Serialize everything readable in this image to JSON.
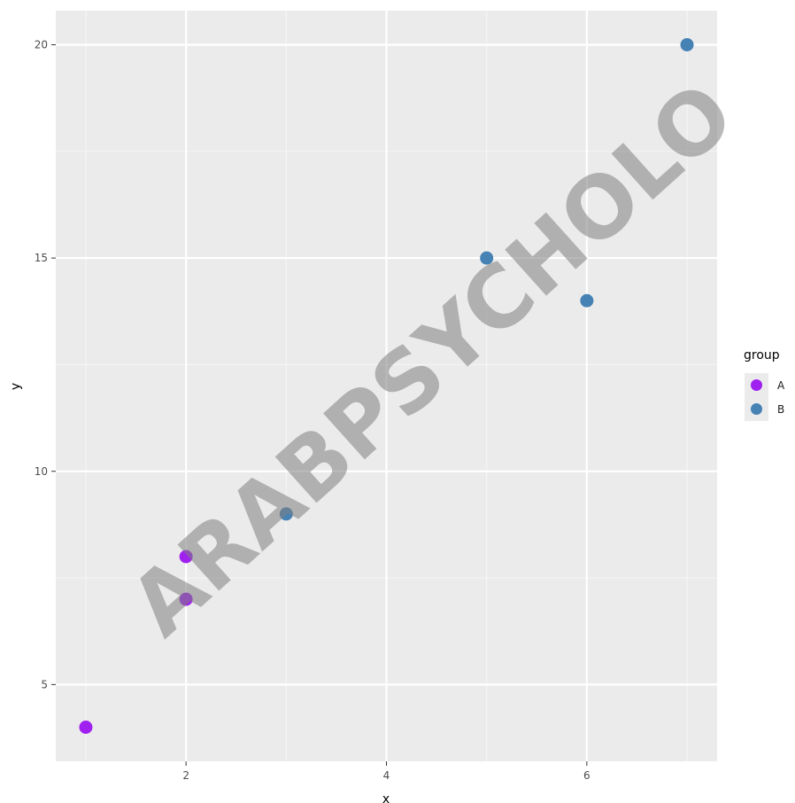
{
  "chart_data": {
    "type": "scatter",
    "title": "",
    "xlabel": "x",
    "ylabel": "y",
    "xlim": [
      0.7,
      7.3
    ],
    "ylim": [
      3.2,
      20.8
    ],
    "x_ticks": [
      2,
      4,
      6
    ],
    "y_ticks": [
      5,
      10,
      15,
      20
    ],
    "x_tick_labels": [
      "2",
      "4",
      "6"
    ],
    "y_tick_labels": [
      "5",
      "10",
      "15",
      "20"
    ],
    "grid": true,
    "legend": {
      "title": "group",
      "position": "right"
    },
    "series": [
      {
        "name": "A",
        "color": "#a020f0",
        "points": [
          {
            "x": 1,
            "y": 4
          },
          {
            "x": 2,
            "y": 7
          },
          {
            "x": 2,
            "y": 8
          }
        ]
      },
      {
        "name": "B",
        "color": "#4682b4",
        "points": [
          {
            "x": 3,
            "y": 9
          },
          {
            "x": 5,
            "y": 15
          },
          {
            "x": 6,
            "y": 14
          },
          {
            "x": 7,
            "y": 20
          }
        ]
      }
    ]
  },
  "watermark": "ARABPSYCHOLO"
}
